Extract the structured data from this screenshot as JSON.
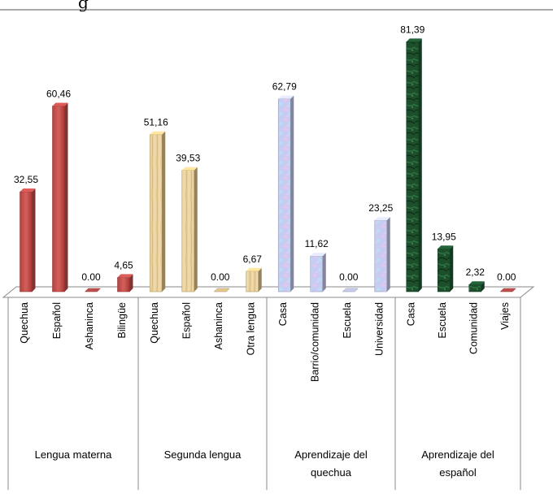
{
  "header_fragment": "g",
  "chart_data": {
    "type": "bar",
    "title": "",
    "xlabel": "",
    "ylabel": "",
    "ylim": [
      0,
      85
    ],
    "grid": false,
    "legend": "none",
    "groups": [
      {
        "name_lines": [
          "Lengua materna"
        ],
        "color": "#c0504d",
        "pattern": "solid",
        "categories": [
          "Quechua",
          "Español",
          "Ashaninca",
          "Bilingüe"
        ],
        "values": [
          32.55,
          60.46,
          0.0,
          4.65
        ],
        "labels": [
          "32,55",
          "60,46",
          "0.00",
          "4,65"
        ]
      },
      {
        "name_lines": [
          "Segunda lengua"
        ],
        "color": "#e6c98c",
        "pattern": "wood",
        "categories": [
          "Quechua",
          "Español",
          "Ashaninca",
          "Otra lengua"
        ],
        "values": [
          51.16,
          39.53,
          0.0,
          6.67
        ],
        "labels": [
          "51,16",
          "39,53",
          "0.00",
          "6,67"
        ]
      },
      {
        "name_lines": [
          "Aprendizaje del",
          "quechua"
        ],
        "color": "#c9cdf0",
        "pattern": "pastel",
        "categories": [
          "Casa",
          "Barrio/comunidad",
          "Escuela",
          "Universidad"
        ],
        "values": [
          62.79,
          11.62,
          0.0,
          23.25
        ],
        "labels": [
          "62,79",
          "11,62",
          "0.00",
          "23,25"
        ]
      },
      {
        "name_lines": [
          "Aprendizaje del",
          "español"
        ],
        "color": "#1e5631",
        "pattern": "marble",
        "zero_color": "#c0504d",
        "categories": [
          "Casa",
          "Escuela",
          "Comunidad",
          "Viajes"
        ],
        "values": [
          81.39,
          13.95,
          2.32,
          0.0
        ],
        "labels": [
          "81,39",
          "13,95",
          "2,32",
          "0.00"
        ]
      }
    ]
  }
}
